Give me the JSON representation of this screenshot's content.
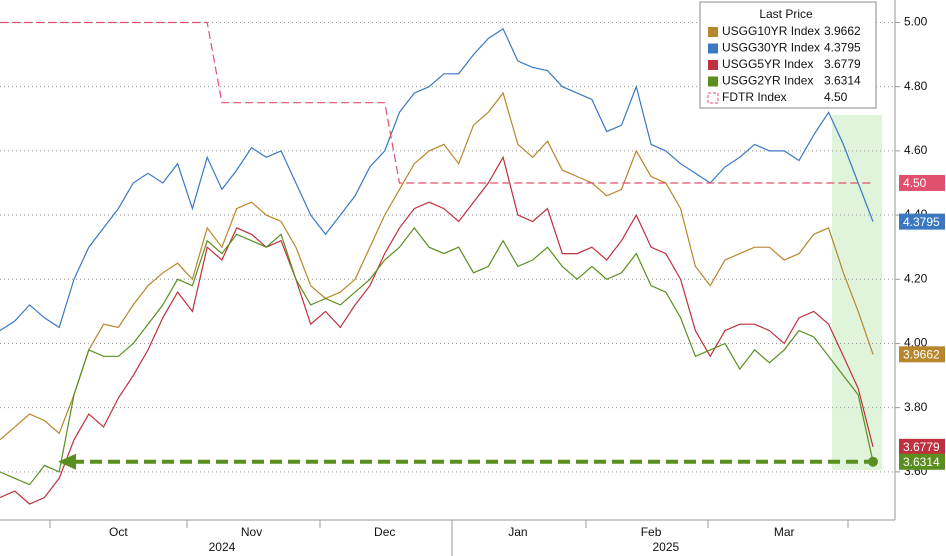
{
  "chart_data": {
    "type": "line",
    "legend_title": "Last Price",
    "categories": [
      null,
      null,
      null,
      null,
      null,
      null,
      null,
      null,
      "Oct",
      null,
      null,
      null,
      null,
      null,
      null,
      null,
      null,
      "Nov",
      null,
      null,
      null,
      null,
      null,
      null,
      null,
      null,
      "Dec",
      null,
      null,
      null,
      null,
      null,
      null,
      null,
      null,
      "Jan",
      null,
      null,
      null,
      null,
      null,
      null,
      null,
      null,
      "Feb",
      null,
      null,
      null,
      null,
      null,
      null,
      null,
      null,
      "Mar",
      null,
      null,
      null,
      null,
      null,
      null
    ],
    "x_years": [
      null,
      null,
      null,
      null,
      null,
      null,
      null,
      null,
      null,
      null,
      null,
      null,
      null,
      null,
      null,
      "2024",
      null,
      null,
      null,
      null,
      null,
      null,
      null,
      null,
      null,
      null,
      null,
      null,
      null,
      null,
      null,
      null,
      null,
      null,
      null,
      null,
      null,
      null,
      null,
      null,
      null,
      null,
      null,
      null,
      null,
      "2025",
      null,
      null,
      null,
      null,
      null,
      null,
      null,
      null,
      null,
      null,
      null,
      null,
      null,
      null
    ],
    "ylim": [
      3.45,
      5.07
    ],
    "yticks": [
      {
        "value": 3.6,
        "label": "3.60"
      },
      {
        "value": 3.8,
        "label": "3.80"
      },
      {
        "value": 4.0,
        "label": "4.00"
      },
      {
        "value": 4.2,
        "label": "4.20"
      },
      {
        "value": 4.4,
        "label": "4.40"
      },
      {
        "value": 4.6,
        "label": "4.60"
      },
      {
        "value": 4.8,
        "label": "4.80"
      },
      {
        "value": 5.0,
        "label": "5.00"
      }
    ],
    "grid": true,
    "legend": "top-right",
    "series": [
      {
        "name": "USGG10YR Index",
        "color": "#b8862b",
        "values": [
          3.7,
          3.74,
          3.78,
          3.76,
          3.72,
          3.84,
          3.98,
          4.06,
          4.05,
          4.12,
          4.18,
          4.22,
          4.25,
          4.2,
          4.36,
          4.3,
          4.42,
          4.44,
          4.4,
          4.38,
          4.3,
          4.18,
          4.14,
          4.16,
          4.2,
          4.3,
          4.4,
          4.48,
          4.56,
          4.6,
          4.62,
          4.56,
          4.68,
          4.72,
          4.78,
          4.62,
          4.58,
          4.63,
          4.54,
          4.52,
          4.5,
          4.46,
          4.48,
          4.6,
          4.52,
          4.5,
          4.42,
          4.24,
          4.18,
          4.26,
          4.28,
          4.3,
          4.3,
          4.26,
          4.28,
          4.34,
          4.36,
          4.22,
          4.1,
          3.9662
        ]
      },
      {
        "name": "USGG30YR Index",
        "color": "#3a78c4",
        "values": [
          4.04,
          4.07,
          4.12,
          4.08,
          4.05,
          4.2,
          4.3,
          4.36,
          4.42,
          4.5,
          4.53,
          4.5,
          4.56,
          4.42,
          4.58,
          4.48,
          4.54,
          4.61,
          4.58,
          4.6,
          4.5,
          4.4,
          4.34,
          4.4,
          4.46,
          4.55,
          4.6,
          4.72,
          4.78,
          4.8,
          4.84,
          4.84,
          4.9,
          4.95,
          4.98,
          4.88,
          4.86,
          4.85,
          4.8,
          4.78,
          4.76,
          4.66,
          4.68,
          4.8,
          4.62,
          4.6,
          4.56,
          4.53,
          4.5,
          4.55,
          4.58,
          4.62,
          4.6,
          4.6,
          4.57,
          4.65,
          4.72,
          4.62,
          4.5,
          4.3795
        ]
      },
      {
        "name": "USGG5YR Index",
        "color": "#c0303e",
        "values": [
          3.52,
          3.54,
          3.5,
          3.52,
          3.58,
          3.7,
          3.78,
          3.74,
          3.83,
          3.9,
          3.98,
          4.08,
          4.16,
          4.1,
          4.3,
          4.26,
          4.36,
          4.34,
          4.3,
          4.32,
          4.2,
          4.06,
          4.1,
          4.05,
          4.12,
          4.18,
          4.28,
          4.36,
          4.42,
          4.44,
          4.42,
          4.38,
          4.44,
          4.5,
          4.58,
          4.4,
          4.38,
          4.42,
          4.28,
          4.28,
          4.3,
          4.26,
          4.32,
          4.4,
          4.3,
          4.28,
          4.2,
          4.04,
          3.96,
          4.04,
          4.06,
          4.06,
          4.04,
          4.0,
          4.08,
          4.1,
          4.06,
          3.96,
          3.86,
          3.6779
        ]
      },
      {
        "name": "USGG2YR Index",
        "color": "#5a8f1f",
        "values": [
          3.6,
          3.58,
          3.56,
          3.62,
          3.6,
          3.84,
          3.98,
          3.96,
          3.96,
          4.0,
          4.06,
          4.12,
          4.2,
          4.18,
          4.32,
          4.28,
          4.34,
          4.32,
          4.3,
          4.34,
          4.2,
          4.12,
          4.14,
          4.12,
          4.16,
          4.2,
          4.26,
          4.3,
          4.36,
          4.3,
          4.28,
          4.3,
          4.22,
          4.24,
          4.32,
          4.24,
          4.26,
          4.3,
          4.24,
          4.2,
          4.24,
          4.2,
          4.22,
          4.28,
          4.18,
          4.16,
          4.08,
          3.96,
          3.98,
          4.0,
          3.92,
          3.98,
          3.94,
          3.98,
          4.04,
          4.02,
          3.96,
          3.9,
          3.84,
          3.6314
        ]
      },
      {
        "name": "FDTR Index",
        "color": "#e0506e",
        "dashed": true,
        "values": [
          5.0,
          5.0,
          5.0,
          5.0,
          5.0,
          5.0,
          5.0,
          5.0,
          5.0,
          5.0,
          5.0,
          5.0,
          5.0,
          5.0,
          5.0,
          4.75,
          4.75,
          4.75,
          4.75,
          4.75,
          4.75,
          4.75,
          4.75,
          4.75,
          4.75,
          4.75,
          4.75,
          4.5,
          4.5,
          4.5,
          4.5,
          4.5,
          4.5,
          4.5,
          4.5,
          4.5,
          4.5,
          4.5,
          4.5,
          4.5,
          4.5,
          4.5,
          4.5,
          4.5,
          4.5,
          4.5,
          4.5,
          4.5,
          4.5,
          4.5,
          4.5,
          4.5,
          4.5,
          4.5,
          4.5,
          4.5,
          4.5,
          4.5,
          4.5,
          4.5
        ],
        "value_labels": [
          null,
          null,
          null,
          null,
          null,
          null,
          null,
          null,
          null,
          null,
          null,
          null,
          null,
          null,
          null,
          null,
          null,
          null,
          null,
          null,
          null,
          null,
          null,
          null,
          null,
          null,
          null,
          null,
          null,
          null,
          null,
          null,
          null,
          null,
          null,
          null,
          null,
          null,
          null,
          null,
          null,
          null,
          null,
          null,
          null,
          null,
          null,
          null,
          null,
          null,
          null,
          null,
          null,
          null,
          null,
          null,
          null,
          null,
          null,
          "4.50"
        ]
      }
    ]
  }
}
